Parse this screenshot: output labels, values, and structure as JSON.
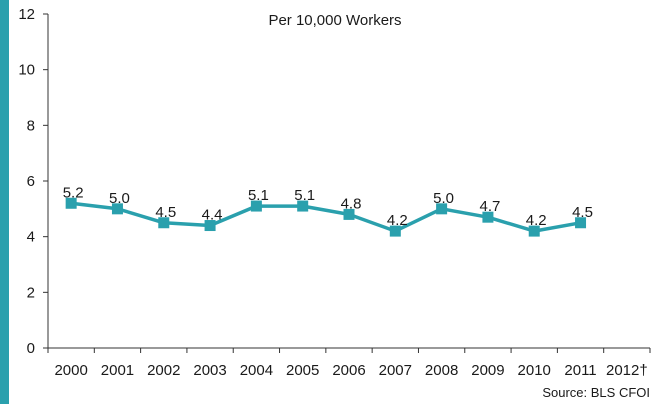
{
  "chart_data": {
    "type": "line",
    "title": "Per 10,000 Workers",
    "source": "Source: BLS CFOI",
    "categories": [
      "2000",
      "2001",
      "2002",
      "2003",
      "2004",
      "2005",
      "2006",
      "2007",
      "2008",
      "2009",
      "2010",
      "2011",
      "2012†"
    ],
    "series": [
      {
        "values": [
          5.2,
          5.0,
          4.5,
          4.4,
          5.1,
          5.1,
          4.8,
          4.2,
          5.0,
          4.7,
          4.2,
          4.5,
          null
        ],
        "labels": [
          "5.2",
          "5.0",
          "4.5",
          "4.4",
          "5.1",
          "5.1",
          "4.8",
          "4.2",
          "5.0",
          "4.7",
          "4.2",
          "4.5",
          ""
        ]
      }
    ],
    "ylim": [
      0,
      12
    ],
    "yticks": [
      "0",
      "2",
      "4",
      "6",
      "8",
      "10",
      "12"
    ],
    "grid": false,
    "legend": "none",
    "colors": {
      "line": "#2aa0ad",
      "marker": "#2aa0ad",
      "accent": "#2aa0ad",
      "axis": "#333333"
    }
  }
}
